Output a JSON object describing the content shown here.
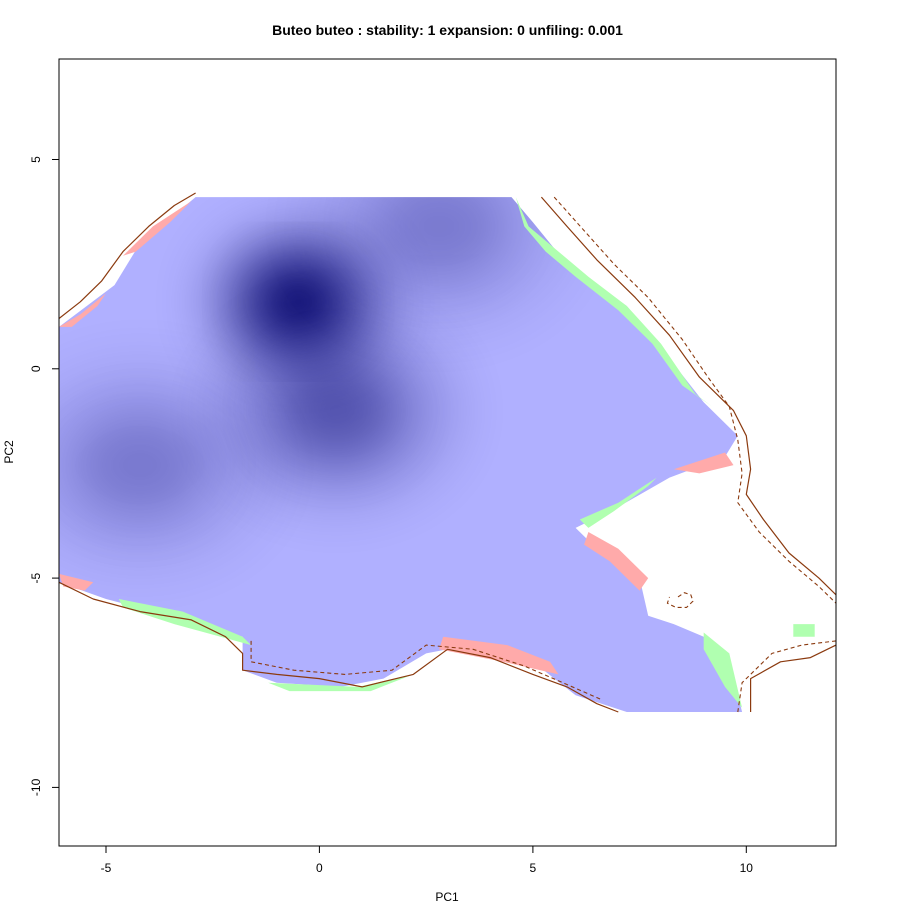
{
  "chart_data": {
    "type": "heatmap",
    "title": "Buteo buteo : stability: 1 expansion: 0 unfiling: 0.001",
    "xlabel": "PC1",
    "ylabel": "PC2",
    "xlim": [
      -6.1,
      12.1
    ],
    "ylim": [
      -11.4,
      7.4
    ],
    "xticks": [
      -5,
      0,
      5,
      10
    ],
    "yticks": [
      5,
      0,
      -5,
      -10
    ],
    "grid": false,
    "legend": "none",
    "colors": {
      "stability": "#b0b0ff",
      "density_peak": "#000066",
      "expansion": "#b0ffb0",
      "unfilling": "#ffaaaa",
      "contour": "#8b3a0f"
    },
    "density_peaks": [
      {
        "x": -0.5,
        "y": 1.6,
        "intensity": 1.0
      },
      {
        "x": 0.4,
        "y": -1.0,
        "intensity": 0.45
      },
      {
        "x": -4.2,
        "y": -2.3,
        "intensity": 0.25
      },
      {
        "x": 2.8,
        "y": 3.4,
        "intensity": 0.25
      }
    ],
    "stability_region": [
      [
        -6.1,
        1.0
      ],
      [
        -4.8,
        2.0
      ],
      [
        -4.2,
        3.0
      ],
      [
        -2.9,
        4.1
      ],
      [
        4.5,
        4.1
      ],
      [
        5.0,
        3.5
      ],
      [
        5.8,
        2.5
      ],
      [
        7.2,
        1.5
      ],
      [
        8.0,
        0.5
      ],
      [
        9.0,
        -0.8
      ],
      [
        9.8,
        -1.6
      ],
      [
        9.5,
        -2.1
      ],
      [
        8.2,
        -2.6
      ],
      [
        7.0,
        -3.3
      ],
      [
        6.0,
        -3.8
      ],
      [
        6.5,
        -4.3
      ],
      [
        7.5,
        -5.0
      ],
      [
        7.7,
        -5.9
      ],
      [
        8.3,
        -6.1
      ],
      [
        9.0,
        -6.4
      ],
      [
        9.6,
        -7.0
      ],
      [
        9.9,
        -8.2
      ],
      [
        7.2,
        -8.2
      ],
      [
        6.0,
        -7.8
      ],
      [
        5.0,
        -7.0
      ],
      [
        3.5,
        -6.6
      ],
      [
        2.5,
        -6.8
      ],
      [
        1.5,
        -7.4
      ],
      [
        0.5,
        -7.6
      ],
      [
        -1.0,
        -7.5
      ],
      [
        -1.8,
        -7.2
      ],
      [
        -1.8,
        -6.4
      ],
      [
        -3.5,
        -5.9
      ],
      [
        -5.0,
        -5.5
      ],
      [
        -6.1,
        -5.1
      ]
    ],
    "expansion_regions": [
      [
        [
          4.6,
          4.1
        ],
        [
          4.9,
          3.4
        ],
        [
          5.6,
          2.8
        ],
        [
          6.3,
          2.2
        ],
        [
          7.2,
          1.5
        ],
        [
          8.0,
          0.6
        ],
        [
          8.8,
          -0.6
        ],
        [
          9.2,
          -0.9
        ],
        [
          8.5,
          -0.4
        ],
        [
          7.8,
          0.6
        ],
        [
          7.0,
          1.4
        ],
        [
          6.0,
          2.2
        ],
        [
          5.3,
          2.8
        ],
        [
          4.8,
          3.4
        ]
      ],
      [
        [
          6.1,
          -3.6
        ],
        [
          7.0,
          -3.2
        ],
        [
          7.9,
          -2.6
        ],
        [
          7.7,
          -2.8
        ],
        [
          6.9,
          -3.4
        ],
        [
          6.3,
          -3.8
        ]
      ],
      [
        [
          9.0,
          -6.3
        ],
        [
          9.6,
          -6.8
        ],
        [
          9.9,
          -8.1
        ],
        [
          9.5,
          -7.6
        ],
        [
          9.0,
          -6.7
        ]
      ],
      [
        [
          11.1,
          -6.1
        ],
        [
          11.6,
          -6.1
        ],
        [
          11.6,
          -6.4
        ],
        [
          11.1,
          -6.4
        ]
      ],
      [
        [
          -4.7,
          -5.5
        ],
        [
          -3.2,
          -5.8
        ],
        [
          -1.8,
          -6.4
        ],
        [
          -1.6,
          -6.6
        ],
        [
          -3.4,
          -6.1
        ],
        [
          -4.6,
          -5.7
        ]
      ],
      [
        [
          -1.2,
          -7.5
        ],
        [
          0.9,
          -7.6
        ],
        [
          2.2,
          -7.3
        ],
        [
          1.2,
          -7.7
        ],
        [
          -0.7,
          -7.7
        ]
      ]
    ],
    "unfilling_regions": [
      [
        [
          -6.1,
          1.0
        ],
        [
          -5.6,
          1.3
        ],
        [
          -5.0,
          1.8
        ],
        [
          -5.2,
          1.5
        ],
        [
          -5.8,
          1.0
        ]
      ],
      [
        [
          -4.6,
          2.7
        ],
        [
          -3.9,
          3.4
        ],
        [
          -3.0,
          4.0
        ],
        [
          -3.5,
          3.5
        ],
        [
          -4.3,
          2.8
        ]
      ],
      [
        [
          8.3,
          -2.4
        ],
        [
          9.5,
          -2.0
        ],
        [
          9.7,
          -2.3
        ],
        [
          8.9,
          -2.5
        ]
      ],
      [
        [
          6.3,
          -3.9
        ],
        [
          7.0,
          -4.3
        ],
        [
          7.7,
          -5.0
        ],
        [
          7.5,
          -5.3
        ],
        [
          6.8,
          -4.6
        ],
        [
          6.2,
          -4.2
        ]
      ],
      [
        [
          2.9,
          -6.4
        ],
        [
          4.4,
          -6.6
        ],
        [
          5.4,
          -7.0
        ],
        [
          5.6,
          -7.3
        ],
        [
          4.3,
          -7.0
        ],
        [
          2.8,
          -6.7
        ]
      ],
      [
        [
          -6.1,
          -4.9
        ],
        [
          -5.3,
          -5.1
        ],
        [
          -5.5,
          -5.3
        ],
        [
          -6.0,
          -5.2
        ]
      ]
    ],
    "contour_solid": [
      [
        [
          -6.1,
          1.2
        ],
        [
          -5.6,
          1.6
        ],
        [
          -5.1,
          2.1
        ],
        [
          -4.6,
          2.8
        ],
        [
          -4.0,
          3.4
        ],
        [
          -3.4,
          3.9
        ],
        [
          -2.9,
          4.2
        ]
      ],
      [
        [
          5.2,
          4.1
        ],
        [
          5.8,
          3.4
        ],
        [
          6.5,
          2.6
        ],
        [
          7.4,
          1.7
        ],
        [
          8.2,
          0.8
        ],
        [
          8.9,
          -0.2
        ],
        [
          9.7,
          -1.0
        ],
        [
          10.0,
          -1.6
        ],
        [
          10.1,
          -2.4
        ],
        [
          10.0,
          -3.0
        ],
        [
          10.4,
          -3.6
        ],
        [
          11.0,
          -4.4
        ],
        [
          11.7,
          -5.0
        ],
        [
          12.1,
          -5.4
        ]
      ],
      [
        [
          12.1,
          -6.6
        ],
        [
          11.5,
          -6.9
        ],
        [
          10.8,
          -7.0
        ],
        [
          10.1,
          -7.4
        ],
        [
          10.1,
          -8.2
        ]
      ],
      [
        [
          -6.1,
          -5.1
        ],
        [
          -5.3,
          -5.5
        ],
        [
          -4.2,
          -5.8
        ],
        [
          -3.0,
          -6.0
        ],
        [
          -2.2,
          -6.4
        ],
        [
          -1.8,
          -6.8
        ],
        [
          -1.8,
          -7.2
        ],
        [
          -1.0,
          -7.3
        ],
        [
          0.0,
          -7.4
        ],
        [
          1.0,
          -7.6
        ],
        [
          2.2,
          -7.3
        ],
        [
          3.0,
          -6.7
        ],
        [
          4.0,
          -6.9
        ],
        [
          5.0,
          -7.3
        ],
        [
          5.8,
          -7.6
        ],
        [
          6.5,
          -8.0
        ],
        [
          7.0,
          -8.2
        ]
      ]
    ],
    "contour_dashed": [
      [
        [
          5.5,
          4.1
        ],
        [
          6.2,
          3.3
        ],
        [
          6.9,
          2.5
        ],
        [
          7.7,
          1.7
        ],
        [
          8.5,
          0.7
        ],
        [
          9.1,
          -0.2
        ],
        [
          9.6,
          -0.9
        ],
        [
          9.8,
          -1.7
        ],
        [
          9.9,
          -2.5
        ],
        [
          9.8,
          -3.2
        ],
        [
          10.3,
          -3.9
        ],
        [
          11.0,
          -4.6
        ],
        [
          11.7,
          -5.2
        ],
        [
          12.1,
          -5.6
        ]
      ],
      [
        [
          12.1,
          -6.5
        ],
        [
          11.3,
          -6.6
        ],
        [
          10.6,
          -6.8
        ],
        [
          9.9,
          -7.5
        ],
        [
          9.8,
          -8.2
        ]
      ],
      [
        [
          -1.6,
          -6.5
        ],
        [
          -1.6,
          -7.0
        ],
        [
          -0.6,
          -7.2
        ],
        [
          0.6,
          -7.3
        ],
        [
          1.7,
          -7.2
        ],
        [
          2.5,
          -6.6
        ],
        [
          3.6,
          -6.7
        ],
        [
          4.8,
          -7.1
        ],
        [
          5.7,
          -7.5
        ],
        [
          6.6,
          -7.9
        ]
      ],
      [
        [
          8.4,
          -5.45
        ],
        [
          8.55,
          -5.35
        ],
        [
          8.7,
          -5.4
        ],
        [
          8.75,
          -5.55
        ],
        [
          8.6,
          -5.7
        ],
        [
          8.35,
          -5.7
        ],
        [
          8.15,
          -5.6
        ],
        [
          8.2,
          -5.45
        ]
      ]
    ]
  }
}
